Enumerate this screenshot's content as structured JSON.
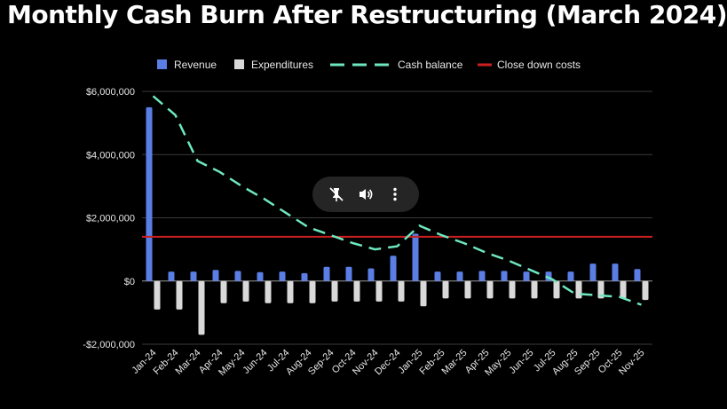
{
  "title": "Monthly Cash Burn After Restructuring (March 2024)",
  "colors": {
    "background": "#000000",
    "revenue": "#5b7ee5",
    "expenditures": "#d9d9d9",
    "cash_balance": "#6ee7c0",
    "close_down": "#cc1f1f",
    "grid": "#3a3a3a"
  },
  "chart_data": {
    "type": "bar",
    "title": "Monthly Cash Burn After Restructuring (March 2024)",
    "xlabel": "",
    "ylabel": "",
    "ylim": [
      -2000000,
      6000000
    ],
    "yticks": [
      -2000000,
      0,
      2000000,
      4000000,
      6000000
    ],
    "ytick_labels": [
      "-$2,000,000",
      "$0",
      "$2,000,000",
      "$4,000,000",
      "$6,000,000"
    ],
    "grid": true,
    "legend_position": "top",
    "categories": [
      "Jan-24",
      "Feb-24",
      "Mar-24",
      "Apr-24",
      "May-24",
      "Jun-24",
      "Jul-24",
      "Aug-24",
      "Sep-24",
      "Oct-24",
      "Nov-24",
      "Dec-24",
      "Jan-25",
      "Feb-25",
      "Mar-25",
      "Apr-25",
      "May-25",
      "Jun-25",
      "Jul-25",
      "Aug-25",
      "Sep-25",
      "Oct-25",
      "Nov-25"
    ],
    "series": [
      {
        "name": "Revenue",
        "type": "bar",
        "values": [
          5500000,
          300000,
          300000,
          350000,
          320000,
          280000,
          300000,
          250000,
          450000,
          450000,
          400000,
          800000,
          1500000,
          300000,
          300000,
          320000,
          320000,
          300000,
          300000,
          300000,
          550000,
          550000,
          380000
        ]
      },
      {
        "name": "Expenditures",
        "type": "bar",
        "values": [
          -900000,
          -900000,
          -1700000,
          -700000,
          -650000,
          -700000,
          -700000,
          -700000,
          -650000,
          -650000,
          -650000,
          -650000,
          -800000,
          -550000,
          -550000,
          -550000,
          -550000,
          -550000,
          -550000,
          -550000,
          -550000,
          -550000,
          -600000
        ]
      },
      {
        "name": "Cash balance",
        "type": "line",
        "style": "dashed",
        "values": [
          5850000,
          5250000,
          3800000,
          3450000,
          3000000,
          2600000,
          2150000,
          1700000,
          1450000,
          1200000,
          1000000,
          1100000,
          1750000,
          1450000,
          1200000,
          900000,
          650000,
          350000,
          50000,
          -400000,
          -450000,
          -500000,
          -750000
        ]
      },
      {
        "name": "Close down costs",
        "type": "line",
        "style": "solid",
        "values": [
          1400000,
          1400000,
          1400000,
          1400000,
          1400000,
          1400000,
          1400000,
          1400000,
          1400000,
          1400000,
          1400000,
          1400000,
          1400000,
          1400000,
          1400000,
          1400000,
          1400000,
          1400000,
          1400000,
          1400000,
          1400000,
          1400000,
          1400000
        ]
      }
    ]
  },
  "overlay": {
    "mute_icon": "mute-icon",
    "volume_icon": "volume-icon",
    "more_icon": "more-vertical-icon"
  }
}
